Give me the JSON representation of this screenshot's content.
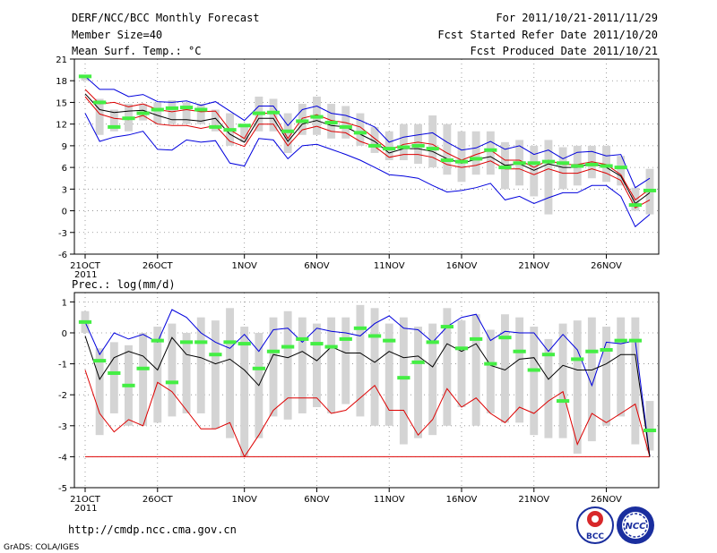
{
  "header": {
    "title": "DERF/NCC/BCC Monthly Forecast",
    "member_size": "Member Size=40",
    "variable": "Mean Surf. Temp.: °C",
    "period": "For 2011/10/21-2011/11/29",
    "started": "Fcst Started Refer Date 2011/10/20",
    "produced": "Fcst Produced Date 2011/10/21"
  },
  "footer": {
    "url": "http://cmdp.ncc.cma.gov.cn",
    "grads": "GrADS: COLA/IGES",
    "logo_bcc": "BCC",
    "logo_ncc": "NCC"
  },
  "colors": {
    "box": "#d4d4d4",
    "marker": "#44ee44",
    "max_line": "#0000dd",
    "min_line": "#0000dd",
    "mean_line": "#000000",
    "upper_line": "#dd0000",
    "lower_line": "#dd0000"
  },
  "chart_data": [
    {
      "type": "box",
      "title": "Mean Surf. Temp.: °C",
      "ylim": [
        -6,
        21
      ],
      "yticks": [
        "21",
        "18",
        "15",
        "12",
        "9",
        "6",
        "3",
        "0",
        "-3",
        "-6"
      ],
      "ytick_values": [
        21,
        18,
        15,
        12,
        9,
        6,
        3,
        0,
        -3,
        -6
      ],
      "xticks": [
        {
          "day": 0,
          "label": "21OCT",
          "sub": "2011"
        },
        {
          "day": 5,
          "label": "26OCT"
        },
        {
          "day": 11,
          "label": "1NOV"
        },
        {
          "day": 16,
          "label": "6NOV"
        },
        {
          "day": 21,
          "label": "11NOV"
        },
        {
          "day": 26,
          "label": "16NOV"
        },
        {
          "day": 31,
          "label": "21NOV"
        },
        {
          "day": 36,
          "label": "26NOV"
        }
      ],
      "n_days": 40,
      "series": [
        {
          "name": "max",
          "color_key": "max_line",
          "values": [
            18.6,
            16.8,
            16.8,
            15.8,
            16.1,
            15.1,
            15.0,
            15.2,
            14.6,
            15.1,
            13.8,
            12.5,
            14.5,
            14.5,
            11.8,
            14.0,
            14.5,
            13.5,
            13.2,
            12.5,
            11.6,
            9.5,
            10.2,
            10.5,
            10.8,
            9.5,
            8.4,
            8.7,
            9.6,
            8.5,
            9.0,
            7.8,
            8.4,
            7.2,
            8.1,
            8.2,
            7.6,
            7.8,
            3.2,
            4.5
          ]
        },
        {
          "name": "upper",
          "color_key": "upper_line",
          "values": [
            16.8,
            14.8,
            15.0,
            14.4,
            14.8,
            14.0,
            13.7,
            14.0,
            13.7,
            13.8,
            11.2,
            10.0,
            13.5,
            13.5,
            10.0,
            12.8,
            13.3,
            12.5,
            12.2,
            11.6,
            10.0,
            8.4,
            9.2,
            9.5,
            9.2,
            8.0,
            7.0,
            7.8,
            8.4,
            7.0,
            7.0,
            6.0,
            7.0,
            6.4,
            6.4,
            6.8,
            6.4,
            5.0,
            1.5,
            3.0
          ]
        },
        {
          "name": "mean",
          "color_key": "mean_line",
          "values": [
            16.2,
            14.0,
            13.6,
            13.8,
            13.9,
            13.2,
            12.6,
            12.6,
            12.4,
            12.8,
            10.6,
            9.5,
            12.8,
            12.8,
            9.6,
            12.0,
            12.5,
            11.8,
            11.6,
            10.6,
            9.6,
            8.0,
            8.6,
            8.6,
            8.2,
            7.2,
            6.6,
            7.1,
            7.5,
            6.3,
            6.5,
            5.6,
            6.5,
            6.0,
            6.0,
            6.6,
            6.0,
            4.8,
            1.0,
            2.5
          ]
        },
        {
          "name": "lower",
          "color_key": "lower_line",
          "values": [
            15.8,
            13.4,
            12.8,
            12.6,
            13.2,
            12.0,
            11.8,
            11.8,
            11.4,
            11.8,
            9.6,
            8.9,
            12.0,
            12.0,
            9.0,
            11.2,
            11.7,
            11.0,
            10.8,
            9.6,
            8.9,
            7.4,
            7.8,
            7.8,
            7.4,
            6.4,
            6.0,
            6.3,
            6.9,
            5.8,
            5.8,
            5.0,
            5.8,
            5.2,
            5.2,
            5.8,
            5.2,
            4.2,
            0.4,
            1.5
          ]
        },
        {
          "name": "min",
          "color_key": "min_line",
          "values": [
            13.5,
            9.6,
            10.2,
            10.5,
            11.0,
            8.5,
            8.4,
            9.8,
            9.5,
            9.7,
            6.6,
            6.2,
            10.0,
            9.8,
            7.2,
            9.0,
            9.2,
            8.5,
            7.8,
            7.0,
            6.0,
            5.0,
            4.8,
            4.5,
            3.5,
            2.6,
            2.8,
            3.2,
            3.8,
            1.5,
            2.0,
            1.0,
            1.8,
            2.5,
            2.5,
            3.5,
            3.5,
            2.0,
            -2.2,
            -0.5
          ]
        },
        {
          "name": "ensemble_mean",
          "color_key": "marker",
          "values": [
            18.6,
            15.0,
            11.6,
            12.8,
            13.5,
            14.0,
            14.2,
            14.3,
            14.0,
            11.6,
            11.2,
            11.8,
            13.5,
            13.6,
            11.0,
            12.4,
            13.0,
            12.2,
            11.6,
            10.8,
            9.0,
            8.6,
            8.8,
            9.0,
            8.6,
            7.0,
            6.8,
            7.2,
            8.4,
            6.0,
            6.6,
            6.6,
            6.8,
            6.6,
            6.2,
            6.4,
            6.2,
            6.0,
            0.8,
            2.8
          ]
        },
        {
          "name": "box_top",
          "color_key": "box",
          "values": [
            18.7,
            15.5,
            14.0,
            14.8,
            14.8,
            15.0,
            15.3,
            15.0,
            14.8,
            14.0,
            13.5,
            12.0,
            15.8,
            15.5,
            13.5,
            14.8,
            15.8,
            14.8,
            14.5,
            13.5,
            11.6,
            11.0,
            12.0,
            12.0,
            13.2,
            12.0,
            11.0,
            11.0,
            11.0,
            9.5,
            9.8,
            9.0,
            9.8,
            8.8,
            9.0,
            9.0,
            9.0,
            7.6,
            3.2,
            5.8
          ]
        },
        {
          "name": "box_bottom",
          "color_key": "box",
          "values": [
            18.0,
            10.5,
            11.0,
            11.0,
            12.5,
            12.0,
            12.0,
            12.0,
            12.0,
            11.0,
            9.0,
            9.5,
            11.0,
            11.0,
            8.0,
            10.5,
            10.5,
            10.0,
            10.0,
            9.0,
            8.0,
            7.0,
            7.0,
            6.5,
            6.0,
            5.0,
            4.0,
            5.0,
            5.0,
            3.0,
            3.5,
            2.0,
            -0.5,
            3.0,
            3.5,
            4.5,
            4.0,
            3.5,
            0.0,
            -0.5
          ]
        }
      ]
    },
    {
      "type": "box",
      "title": "Prec.: log(mm/d)",
      "ylim": [
        -5,
        1.3
      ],
      "yticks": [
        "1",
        "0",
        "-1",
        "-2",
        "-3",
        "-4",
        "-5"
      ],
      "ytick_values": [
        1,
        0,
        -1,
        -2,
        -3,
        -4,
        -5
      ],
      "xticks": [
        {
          "day": 0,
          "label": "21OCT",
          "sub": "2011"
        },
        {
          "day": 5,
          "label": "26OCT"
        },
        {
          "day": 11,
          "label": "1NOV"
        },
        {
          "day": 16,
          "label": "6NOV"
        },
        {
          "day": 21,
          "label": "11NOV"
        },
        {
          "day": 26,
          "label": "16NOV"
        },
        {
          "day": 31,
          "label": "21NOV"
        },
        {
          "day": 36,
          "label": "26NOV"
        }
      ],
      "n_days": 40,
      "series": [
        {
          "name": "max",
          "color_key": "max_line",
          "values": [
            0.35,
            -0.7,
            0.0,
            -0.2,
            -0.05,
            -0.3,
            0.75,
            0.5,
            0.0,
            -0.3,
            -0.5,
            -0.05,
            -0.6,
            0.1,
            0.15,
            -0.3,
            0.15,
            0.05,
            0.0,
            -0.1,
            0.3,
            0.55,
            0.15,
            0.1,
            -0.3,
            0.2,
            0.5,
            0.6,
            -0.25,
            0.05,
            0.0,
            0.0,
            -0.6,
            -0.05,
            -0.55,
            -1.7,
            -0.3,
            -0.35,
            -0.25,
            -4.0
          ]
        },
        {
          "name": "mean",
          "color_key": "mean_line",
          "values": [
            -0.1,
            -1.5,
            -0.8,
            -0.6,
            -0.75,
            -1.2,
            -0.15,
            -0.7,
            -0.8,
            -1.0,
            -0.85,
            -1.2,
            -1.7,
            -0.7,
            -0.8,
            -0.6,
            -0.9,
            -0.45,
            -0.65,
            -0.65,
            -0.95,
            -0.6,
            -0.8,
            -0.75,
            -1.1,
            -0.35,
            -0.6,
            -0.35,
            -1.05,
            -1.2,
            -0.85,
            -0.8,
            -1.5,
            -1.05,
            -1.2,
            -1.2,
            -1.0,
            -0.7,
            -0.7,
            -4.0
          ]
        },
        {
          "name": "upper",
          "color_key": "upper_line",
          "values": [
            -1.2,
            -2.6,
            -3.2,
            -2.8,
            -3.0,
            -1.6,
            -1.9,
            -2.5,
            -3.1,
            -3.1,
            -2.9,
            -4.0,
            -3.3,
            -2.5,
            -2.1,
            -2.1,
            -2.1,
            -2.6,
            -2.5,
            -2.1,
            -1.7,
            -2.5,
            -2.5,
            -3.3,
            -2.8,
            -1.8,
            -2.4,
            -2.1,
            -2.6,
            -2.9,
            -2.4,
            -2.6,
            -2.2,
            -1.9,
            -3.6,
            -2.6,
            -2.9,
            -2.6,
            -2.3,
            -4.0
          ]
        },
        {
          "name": "min",
          "color_key": "lower_line",
          "values": [
            -4.0,
            -4.0,
            -4.0,
            -4.0,
            -4.0,
            -4.0,
            -4.0,
            -4.0,
            -4.0,
            -4.0,
            -4.0,
            -4.0,
            -4.0,
            -4.0,
            -4.0,
            -4.0,
            -4.0,
            -4.0,
            -4.0,
            -4.0,
            -4.0,
            -4.0,
            -4.0,
            -4.0,
            -4.0,
            -4.0,
            -4.0,
            -4.0,
            -4.0,
            -4.0,
            -4.0,
            -4.0,
            -4.0,
            -4.0,
            -4.0,
            -4.0,
            -4.0,
            -4.0,
            -4.0,
            -4.0
          ]
        },
        {
          "name": "ensemble_mean",
          "color_key": "marker",
          "values": [
            0.35,
            -0.9,
            -1.3,
            -1.7,
            -1.15,
            -0.25,
            -1.6,
            -0.3,
            -0.3,
            -0.7,
            -0.3,
            -0.35,
            -1.15,
            -0.6,
            -0.45,
            -0.2,
            -0.35,
            -0.45,
            -0.2,
            0.15,
            -0.1,
            -0.25,
            -1.45,
            -0.95,
            -0.3,
            0.2,
            -0.5,
            -0.2,
            -1.0,
            -0.15,
            -0.6,
            -1.2,
            -0.7,
            -2.2,
            -0.85,
            -0.6,
            -0.55,
            -0.25,
            -0.25,
            -3.15
          ]
        },
        {
          "name": "box_top",
          "color_key": "box",
          "values": [
            0.7,
            -0.5,
            -0.3,
            -0.4,
            0.0,
            0.2,
            0.3,
            0.0,
            0.5,
            0.4,
            0.8,
            0.2,
            0.0,
            0.5,
            0.7,
            0.5,
            0.3,
            0.5,
            0.5,
            0.9,
            0.8,
            0.3,
            0.5,
            0.2,
            0.3,
            0.8,
            0.4,
            0.6,
            0.1,
            0.6,
            0.5,
            0.2,
            -0.2,
            0.3,
            0.4,
            0.5,
            0.2,
            0.5,
            0.5,
            -2.2
          ]
        },
        {
          "name": "box_bottom",
          "color_key": "box",
          "values": [
            0.0,
            -3.3,
            -2.6,
            -3.0,
            -3.0,
            -2.9,
            -2.7,
            -2.6,
            -2.6,
            -3.1,
            -3.4,
            -4.0,
            -3.4,
            -2.7,
            -2.8,
            -2.6,
            -2.4,
            -2.6,
            -2.3,
            -2.7,
            -3.0,
            -3.0,
            -3.6,
            -3.4,
            -3.3,
            -3.0,
            -2.4,
            -3.0,
            -2.6,
            -2.9,
            -2.9,
            -3.3,
            -3.4,
            -3.4,
            -3.9,
            -3.5,
            -3.0,
            -2.7,
            -3.6,
            -3.8
          ]
        }
      ]
    }
  ]
}
